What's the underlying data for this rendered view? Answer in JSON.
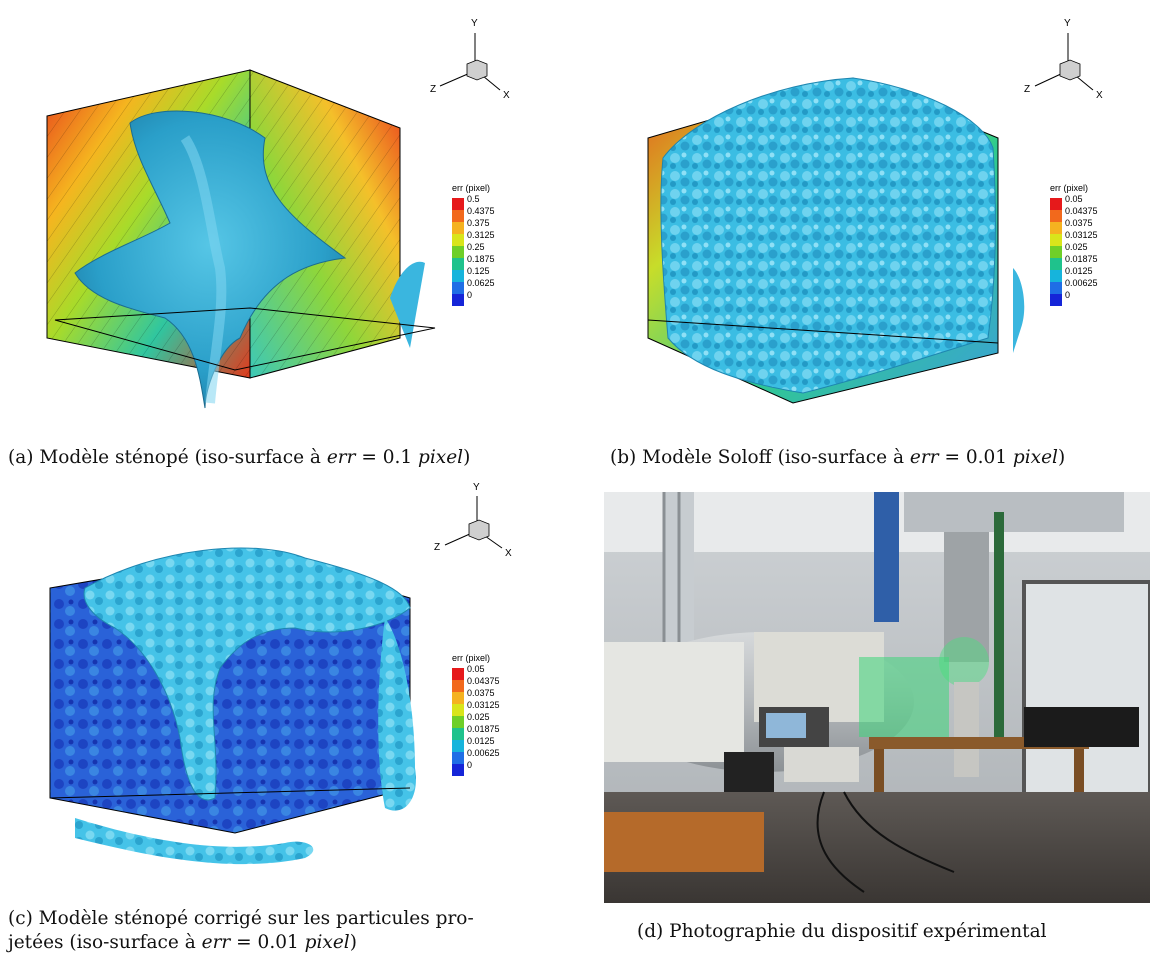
{
  "panels": [
    {
      "id": "a",
      "caption_prefix": "(a) Modèle sténopé (iso-surface à ",
      "caption_math": "err",
      "caption_eq": " = 0.1 ",
      "caption_unit": "pixel",
      "caption_suffix": ")",
      "colorbar_title": "err (pixel)",
      "colorbar_ticks": [
        "0.5",
        "0.4375",
        "0.375",
        "0.3125",
        "0.25",
        "0.1875",
        "0.125",
        "0.0625",
        "0"
      ],
      "axes": {
        "y": "Y",
        "z": "Z",
        "x": "X"
      }
    },
    {
      "id": "b",
      "caption_prefix": "(b) Modèle Soloff (iso-surface à ",
      "caption_math": "err",
      "caption_eq": " = 0.01 ",
      "caption_unit": "pixel",
      "caption_suffix": ")",
      "colorbar_title": "err (pixel)",
      "colorbar_ticks": [
        "0.05",
        "0.04375",
        "0.0375",
        "0.03125",
        "0.025",
        "0.01875",
        "0.0125",
        "0.00625",
        "0"
      ],
      "axes": {
        "y": "Y",
        "z": "Z",
        "x": "X"
      }
    },
    {
      "id": "c",
      "caption_line1": "(c) Modèle sténopé corrigé sur les particules pro-",
      "caption_prefix": "jetées (iso-surface à ",
      "caption_math": "err",
      "caption_eq": " = 0.01 ",
      "caption_unit": "pixel",
      "caption_suffix": ")",
      "colorbar_title": "err (pixel)",
      "colorbar_ticks": [
        "0.05",
        "0.04375",
        "0.0375",
        "0.03125",
        "0.025",
        "0.01875",
        "0.0125",
        "0.00625",
        "0"
      ],
      "axes": {
        "y": "Y",
        "z": "Z",
        "x": "X"
      }
    },
    {
      "id": "d",
      "caption": "(d) Photographie du dispositif expérimental"
    }
  ],
  "colorbar_colors": [
    "#e6191b",
    "#f2691c",
    "#f5b220",
    "#d9e51b",
    "#6fcf28",
    "#1fc28c",
    "#16b4dc",
    "#1f6ee6",
    "#1525d8"
  ]
}
